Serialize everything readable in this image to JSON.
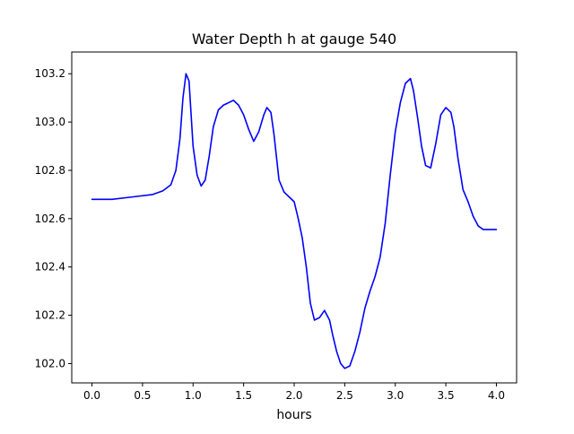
{
  "chart_data": {
    "type": "line",
    "title": "Water Depth h at gauge 540",
    "xlabel": "hours",
    "ylabel": "",
    "xlim": [
      -0.2,
      4.2
    ],
    "ylim": [
      101.92,
      103.29
    ],
    "xticks": [
      0.0,
      0.5,
      1.0,
      1.5,
      2.0,
      2.5,
      3.0,
      3.5,
      4.0
    ],
    "xtick_labels": [
      "0.0",
      "0.5",
      "1.0",
      "1.5",
      "2.0",
      "2.5",
      "3.0",
      "3.5",
      "4.0"
    ],
    "yticks": [
      102.0,
      102.2,
      102.4,
      102.6,
      102.8,
      103.0,
      103.2
    ],
    "ytick_labels": [
      "102.0",
      "102.2",
      "102.4",
      "102.6",
      "102.8",
      "103.0",
      "103.2"
    ],
    "grid": false,
    "series": [
      {
        "color": "#0000ff",
        "x": [
          0.0,
          0.2,
          0.4,
          0.6,
          0.7,
          0.78,
          0.83,
          0.87,
          0.9,
          0.93,
          0.96,
          1.0,
          1.04,
          1.08,
          1.12,
          1.16,
          1.2,
          1.25,
          1.3,
          1.35,
          1.4,
          1.45,
          1.5,
          1.55,
          1.6,
          1.65,
          1.7,
          1.73,
          1.77,
          1.8,
          1.85,
          1.9,
          1.95,
          2.0,
          2.04,
          2.08,
          2.12,
          2.16,
          2.2,
          2.25,
          2.3,
          2.35,
          2.38,
          2.42,
          2.46,
          2.5,
          2.55,
          2.6,
          2.65,
          2.7,
          2.75,
          2.8,
          2.85,
          2.9,
          2.95,
          3.0,
          3.05,
          3.1,
          3.15,
          3.18,
          3.22,
          3.26,
          3.3,
          3.35,
          3.4,
          3.45,
          3.5,
          3.55,
          3.58,
          3.62,
          3.67,
          3.72,
          3.77,
          3.82,
          3.87,
          3.92,
          3.96,
          4.0
        ],
        "y": [
          102.68,
          102.68,
          102.69,
          102.7,
          102.715,
          102.74,
          102.8,
          102.93,
          103.1,
          103.2,
          103.17,
          102.9,
          102.78,
          102.735,
          102.76,
          102.86,
          102.98,
          103.05,
          103.07,
          103.08,
          103.09,
          103.07,
          103.03,
          102.97,
          102.92,
          102.96,
          103.03,
          103.06,
          103.04,
          102.95,
          102.76,
          102.71,
          102.69,
          102.67,
          102.6,
          102.52,
          102.4,
          102.25,
          102.18,
          102.19,
          102.22,
          102.18,
          102.12,
          102.05,
          102.0,
          101.98,
          101.99,
          102.05,
          102.13,
          102.23,
          102.3,
          102.36,
          102.44,
          102.58,
          102.78,
          102.96,
          103.08,
          103.16,
          103.18,
          103.13,
          103.02,
          102.9,
          102.82,
          102.81,
          102.91,
          103.03,
          103.06,
          103.04,
          102.98,
          102.85,
          102.72,
          102.67,
          102.61,
          102.57,
          102.555,
          102.555,
          102.555,
          102.555
        ]
      }
    ]
  }
}
